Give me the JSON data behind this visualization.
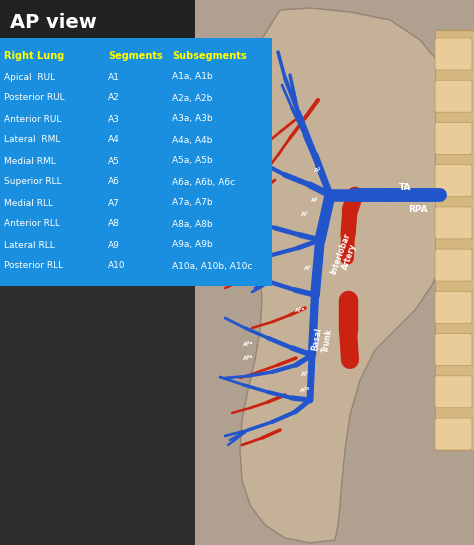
{
  "title": "AP view",
  "title_color": "#ffffff",
  "title_bg_color": "#222222",
  "table_bg_color": "#1a8fdf",
  "table_header_color": "#ffff00",
  "table_text_color": "#ffffff",
  "bg_left_color": "#2e2e2e",
  "bg_right_color": "#b0a090",
  "lung_fill": "#c8b49a",
  "lung_edge": "#908070",
  "spine_fill": "#d4b880",
  "spine_edge": "#b89860",
  "vert_fill": "#e8cc99",
  "blue_artery": "#2255cc",
  "red_artery": "#cc2211",
  "header": [
    "Right Lung",
    "Segments",
    "Subsegments"
  ],
  "rows": [
    [
      "Apical  RUL",
      "A1",
      "A1a, A1b"
    ],
    [
      "Posterior RUL",
      "A2",
      "A2a, A2b"
    ],
    [
      "Anterior RUL",
      "A3",
      "A3a, A3b"
    ],
    [
      "Lateral  RML",
      "A4",
      "A4a, A4b"
    ],
    [
      "Medial RML",
      "A5",
      "A5a, A5b"
    ],
    [
      "Superior RLL",
      "A6",
      "A6a, A6b, A6c"
    ],
    [
      "Medial RLL",
      "A7",
      "A7a, A7b"
    ],
    [
      "Anterior RLL",
      "A8",
      "A8a, A8b"
    ],
    [
      "Lateral RLL",
      "A9",
      "A9a, A9b"
    ],
    [
      "Posterior RLL",
      "A10",
      "A10a, A10b, A10c"
    ]
  ],
  "figsize": [
    4.74,
    5.45
  ],
  "dpi": 100
}
